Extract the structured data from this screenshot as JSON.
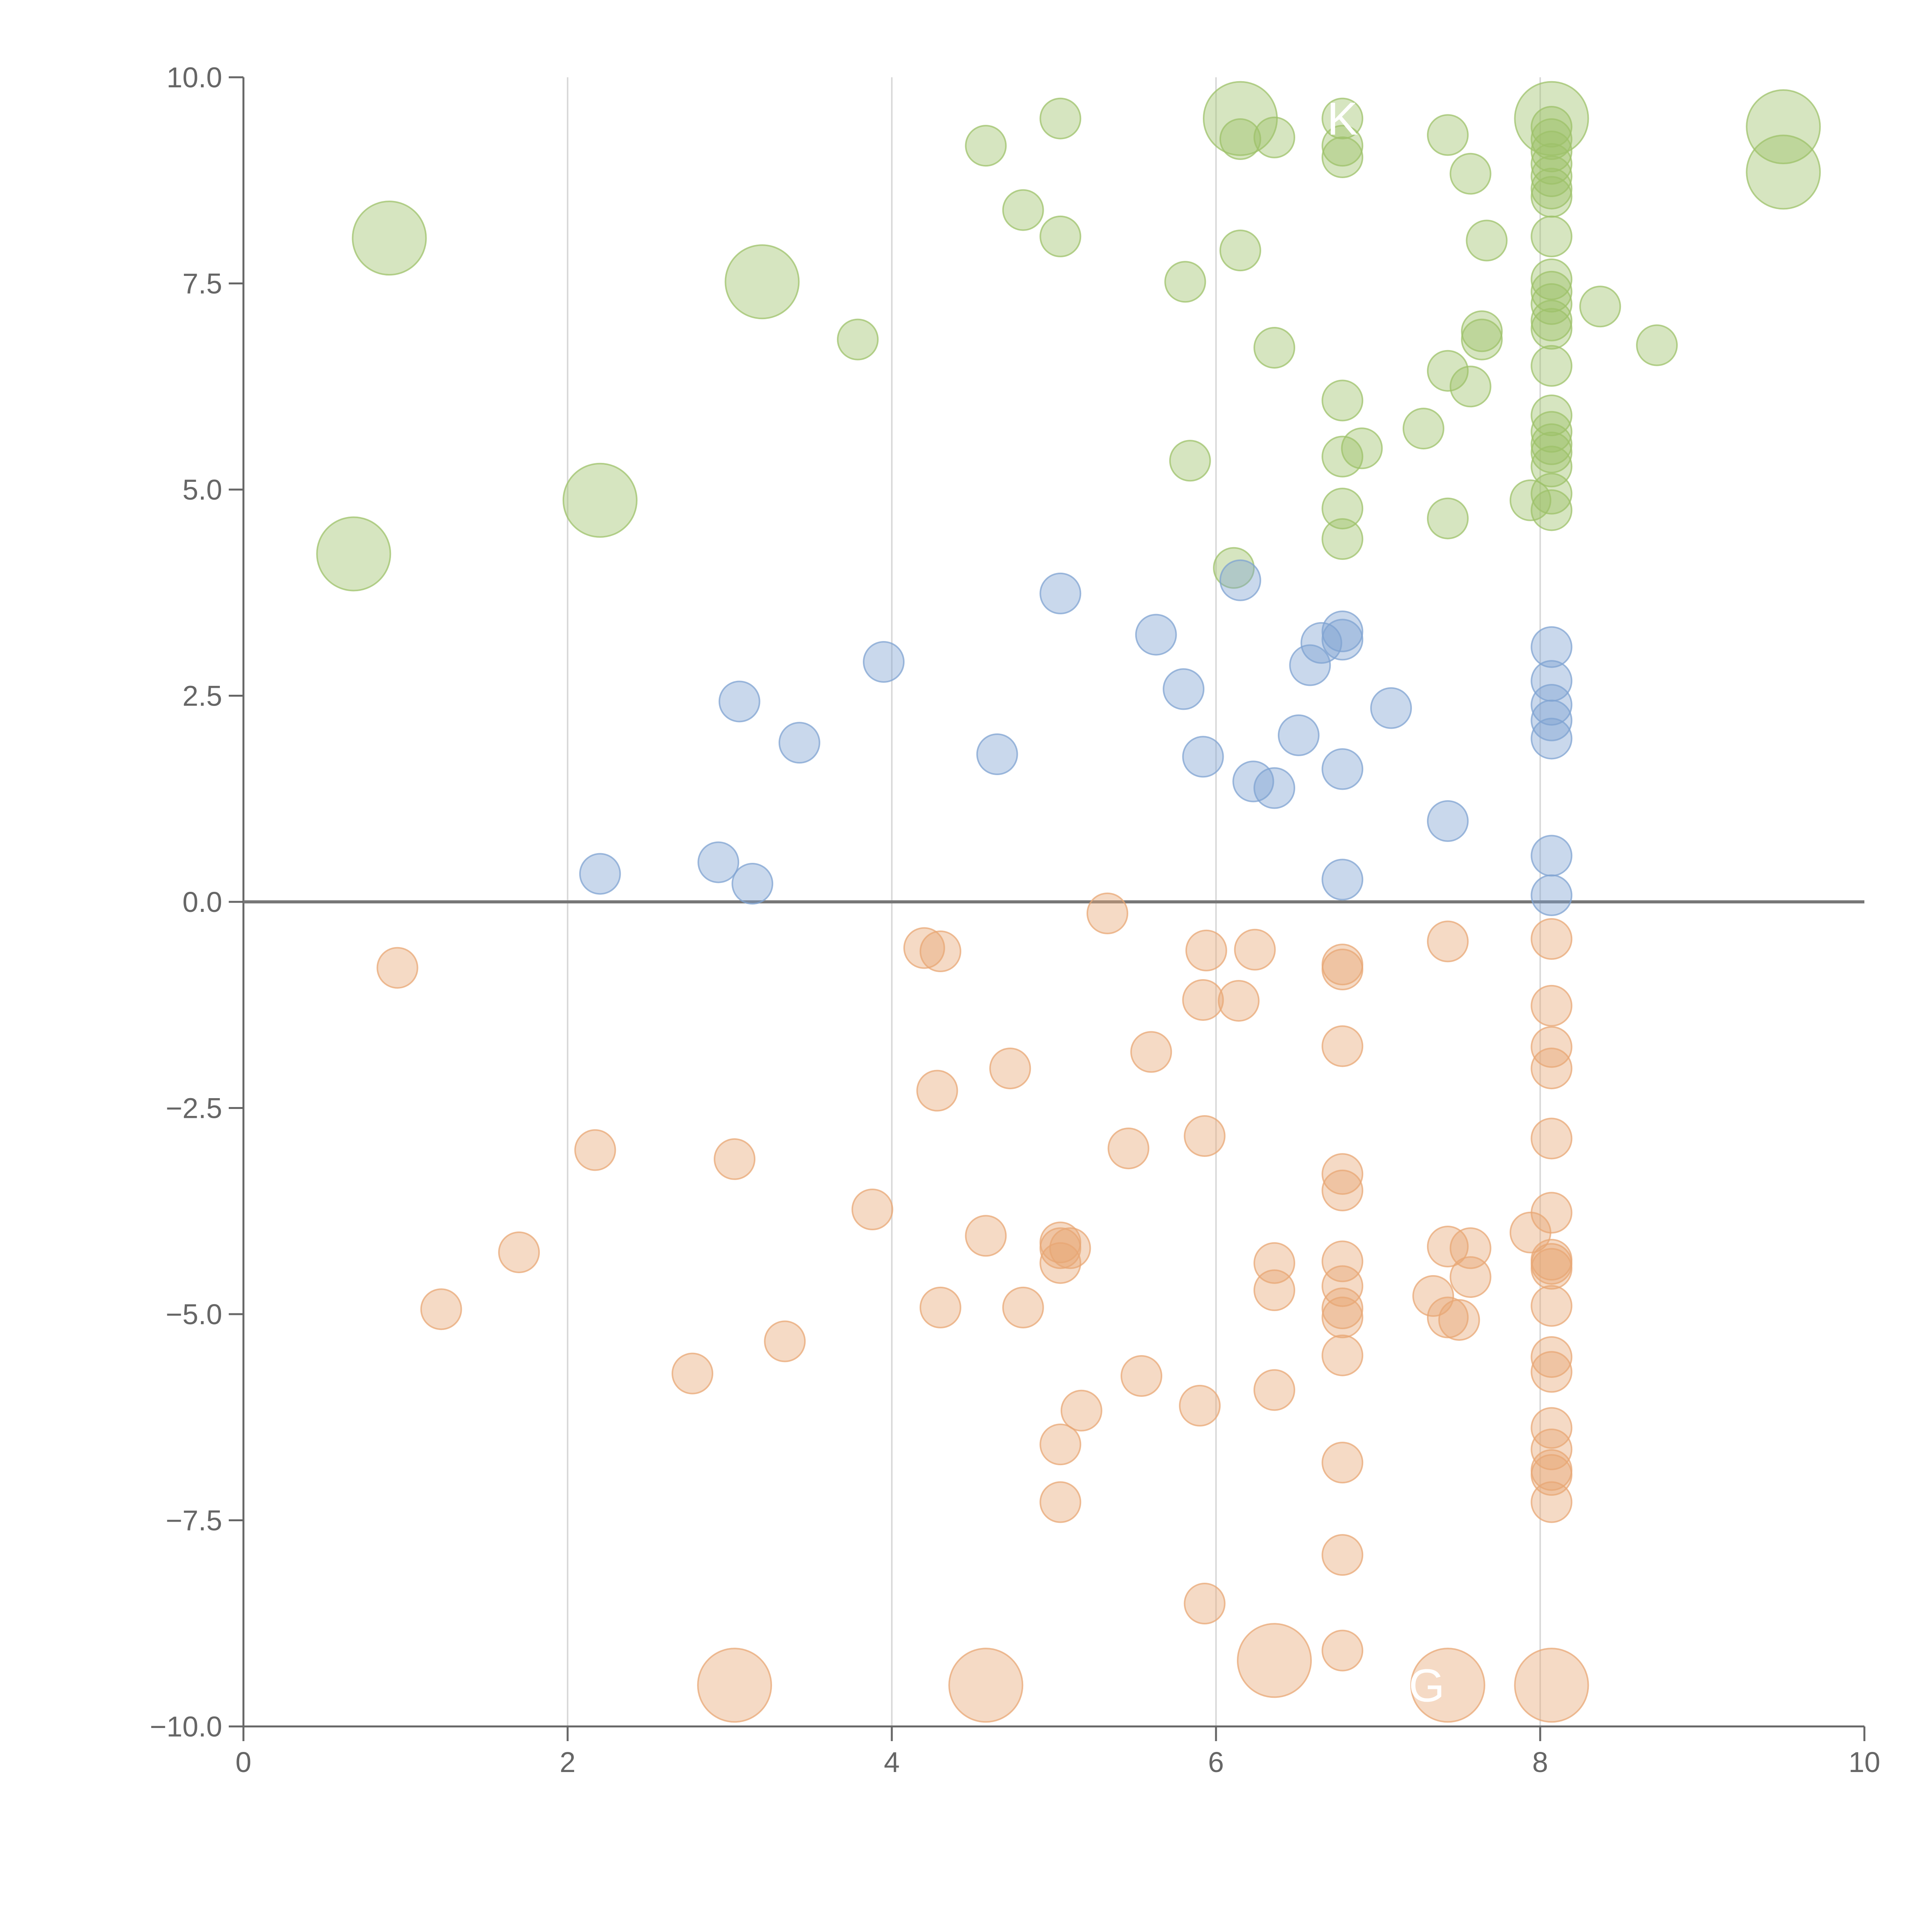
{
  "chart_data": {
    "type": "scatter",
    "title": "",
    "xlabel": "",
    "ylabel": "",
    "xlim": [
      0,
      10
    ],
    "ylim": [
      -10,
      10
    ],
    "x_ticks": [
      0,
      2,
      4,
      6,
      8,
      10
    ],
    "x_tick_labels": [
      "0",
      "2",
      "4",
      "6",
      "8",
      "10"
    ],
    "y_ticks": [
      -10,
      -7.5,
      -5,
      -2.5,
      0,
      2.5,
      5,
      7.5,
      10
    ],
    "y_tick_labels": [
      "−10.0",
      "−7.5",
      "−5.0",
      "−2.5",
      "0.0",
      "2.5",
      "5.0",
      "7.5",
      "10.0"
    ],
    "vertical_gridlines": [
      2,
      4,
      6,
      8
    ],
    "reference_line_y": 0,
    "grid": "vertical only",
    "legend": "none",
    "series": [
      {
        "color": "#9dc26a",
        "points": [
          [
            4.58,
            9.17
          ],
          [
            5.04,
            9.5
          ],
          [
            6.15,
            9.25
          ],
          [
            6.36,
            9.27
          ],
          [
            6.78,
            9.5
          ],
          [
            6.78,
            9.17
          ],
          [
            6.78,
            9.03
          ],
          [
            7.43,
            9.3
          ],
          [
            7.57,
            8.83
          ],
          [
            4.81,
            8.39
          ],
          [
            5.04,
            8.07
          ],
          [
            6.15,
            7.9
          ],
          [
            7.67,
            8.02
          ],
          [
            3.79,
            6.82
          ],
          [
            5.81,
            7.52
          ],
          [
            6.36,
            6.72
          ],
          [
            7.64,
            6.92
          ],
          [
            7.64,
            6.82
          ],
          [
            8.37,
            7.22
          ],
          [
            8.72,
            6.75
          ],
          [
            6.78,
            6.08
          ],
          [
            7.43,
            6.44
          ],
          [
            7.57,
            6.25
          ],
          [
            7.28,
            5.74
          ],
          [
            6.78,
            5.4
          ],
          [
            6.9,
            5.5
          ],
          [
            5.84,
            5.35
          ],
          [
            6.78,
            4.77
          ],
          [
            6.78,
            4.4
          ],
          [
            7.43,
            4.65
          ],
          [
            7.94,
            4.87
          ],
          [
            6.11,
            4.05
          ],
          [
            8.07,
            9.4
          ],
          [
            8.07,
            9.25
          ],
          [
            8.07,
            9.1
          ],
          [
            8.07,
            8.95
          ],
          [
            8.07,
            8.8
          ],
          [
            8.07,
            8.65
          ],
          [
            8.07,
            8.55
          ],
          [
            8.07,
            8.07
          ],
          [
            8.07,
            7.55
          ],
          [
            8.07,
            7.4
          ],
          [
            8.07,
            7.25
          ],
          [
            8.07,
            7.05
          ],
          [
            8.07,
            6.95
          ],
          [
            8.07,
            6.5
          ],
          [
            8.07,
            5.9
          ],
          [
            8.07,
            5.7
          ],
          [
            8.07,
            5.55
          ],
          [
            8.07,
            5.45
          ],
          [
            8.07,
            5.28
          ],
          [
            8.07,
            4.95
          ],
          [
            8.07,
            4.75
          ]
        ]
      },
      {
        "color": "#7fa3d1",
        "points": [
          [
            5.04,
            3.74
          ],
          [
            6.15,
            3.9
          ],
          [
            3.95,
            2.91
          ],
          [
            5.63,
            3.24
          ],
          [
            6.65,
            3.14
          ],
          [
            6.78,
            3.28
          ],
          [
            6.78,
            3.18
          ],
          [
            6.58,
            2.87
          ],
          [
            5.8,
            2.58
          ],
          [
            3.06,
            2.43
          ],
          [
            3.43,
            1.93
          ],
          [
            4.65,
            1.79
          ],
          [
            5.92,
            1.76
          ],
          [
            6.51,
            2.02
          ],
          [
            7.08,
            2.35
          ],
          [
            6.23,
            1.46
          ],
          [
            6.36,
            1.38
          ],
          [
            6.78,
            1.61
          ],
          [
            7.43,
            0.98
          ],
          [
            2.2,
            0.34
          ],
          [
            2.93,
            0.48
          ],
          [
            3.14,
            0.22
          ],
          [
            6.78,
            0.27
          ],
          [
            8.07,
            3.09
          ],
          [
            8.07,
            2.68
          ],
          [
            8.07,
            2.39
          ],
          [
            8.07,
            2.2
          ],
          [
            8.07,
            1.98
          ],
          [
            8.07,
            0.56
          ],
          [
            8.07,
            0.08
          ]
        ]
      },
      {
        "color": "#e8a774",
        "points": [
          [
            5.33,
            -0.14
          ],
          [
            0.95,
            -0.8
          ],
          [
            4.2,
            -0.56
          ],
          [
            4.3,
            -0.6
          ],
          [
            5.94,
            -0.59
          ],
          [
            6.24,
            -0.58
          ],
          [
            6.78,
            -0.76
          ],
          [
            6.78,
            -0.82
          ],
          [
            7.43,
            -0.48
          ],
          [
            5.92,
            -1.19
          ],
          [
            6.14,
            -1.2
          ],
          [
            6.78,
            -1.75
          ],
          [
            5.6,
            -1.82
          ],
          [
            4.73,
            -2.02
          ],
          [
            4.28,
            -2.29
          ],
          [
            2.17,
            -3.01
          ],
          [
            3.03,
            -3.12
          ],
          [
            5.46,
            -2.99
          ],
          [
            5.93,
            -2.84
          ],
          [
            6.78,
            -3.3
          ],
          [
            6.78,
            -3.5
          ],
          [
            3.88,
            -3.73
          ],
          [
            4.58,
            -4.05
          ],
          [
            5.04,
            -4.13
          ],
          [
            5.04,
            -4.2
          ],
          [
            5.1,
            -4.2
          ],
          [
            5.04,
            -4.38
          ],
          [
            1.7,
            -4.25
          ],
          [
            6.36,
            -4.38
          ],
          [
            6.36,
            -4.71
          ],
          [
            6.78,
            -4.36
          ],
          [
            6.78,
            -4.66
          ],
          [
            6.78,
            -4.93
          ],
          [
            6.78,
            -5.04
          ],
          [
            7.43,
            -4.18
          ],
          [
            7.57,
            -4.2
          ],
          [
            7.57,
            -4.55
          ],
          [
            7.94,
            -4.01
          ],
          [
            7.34,
            -4.78
          ],
          [
            7.43,
            -5.04
          ],
          [
            7.5,
            -5.07
          ],
          [
            1.22,
            -4.94
          ],
          [
            4.3,
            -4.92
          ],
          [
            4.81,
            -4.92
          ],
          [
            3.34,
            -5.33
          ],
          [
            2.77,
            -5.72
          ],
          [
            5.54,
            -5.75
          ],
          [
            6.78,
            -5.5
          ],
          [
            6.36,
            -5.92
          ],
          [
            5.17,
            -6.17
          ],
          [
            5.9,
            -6.11
          ],
          [
            5.04,
            -6.58
          ],
          [
            5.04,
            -7.28
          ],
          [
            6.78,
            -6.8
          ],
          [
            6.78,
            -7.92
          ],
          [
            5.93,
            -8.51
          ],
          [
            6.78,
            -9.08
          ],
          [
            8.07,
            -0.45
          ],
          [
            8.07,
            -1.26
          ],
          [
            8.07,
            -1.76
          ],
          [
            8.07,
            -2.02
          ],
          [
            8.07,
            -2.87
          ],
          [
            8.07,
            -3.77
          ],
          [
            8.07,
            -4.34
          ],
          [
            8.07,
            -4.39
          ],
          [
            8.07,
            -4.45
          ],
          [
            8.07,
            -4.9
          ],
          [
            8.07,
            -5.52
          ],
          [
            8.07,
            -5.7
          ],
          [
            8.07,
            -6.38
          ],
          [
            8.07,
            -6.64
          ],
          [
            8.07,
            -6.89
          ],
          [
            8.07,
            -6.95
          ],
          [
            8.07,
            -7.28
          ]
        ]
      }
    ],
    "highlighted_points": [
      {
        "label": "",
        "x": 6.15,
        "y": 9.5,
        "color": "#9dc26a"
      },
      {
        "label": "",
        "x": 8.07,
        "y": 9.5,
        "color": "#9dc26a"
      },
      {
        "label": "",
        "x": 9.5,
        "y": 9.4,
        "color": "#9dc26a"
      },
      {
        "label": "",
        "x": 9.5,
        "y": 8.85,
        "color": "#9dc26a"
      },
      {
        "label": "",
        "x": 0.9,
        "y": 8.05,
        "color": "#9dc26a"
      },
      {
        "label": "",
        "x": 3.2,
        "y": 7.52,
        "color": "#9dc26a"
      },
      {
        "label": "",
        "x": 2.2,
        "y": 4.87,
        "color": "#9dc26a"
      },
      {
        "label": "",
        "x": 0.68,
        "y": 4.22,
        "color": "#9dc26a"
      },
      {
        "label": "",
        "x": 3.03,
        "y": -9.5,
        "color": "#e8a774"
      },
      {
        "label": "",
        "x": 4.58,
        "y": -9.5,
        "color": "#e8a774"
      },
      {
        "label": "",
        "x": 6.36,
        "y": -9.2,
        "color": "#e8a774"
      },
      {
        "label": "",
        "x": 7.43,
        "y": -9.5,
        "color": "#e8a774"
      },
      {
        "label": "",
        "x": 8.07,
        "y": -9.5,
        "color": "#e8a774"
      }
    ],
    "point_labels": [
      {
        "text": "K",
        "x": 6.78,
        "y": 9.5
      },
      {
        "text": "G",
        "x": 7.3,
        "y": -9.5
      }
    ],
    "colors": {
      "axis": "#666666",
      "gridline": "#d9d9d9",
      "zero_line": "#777777"
    }
  }
}
